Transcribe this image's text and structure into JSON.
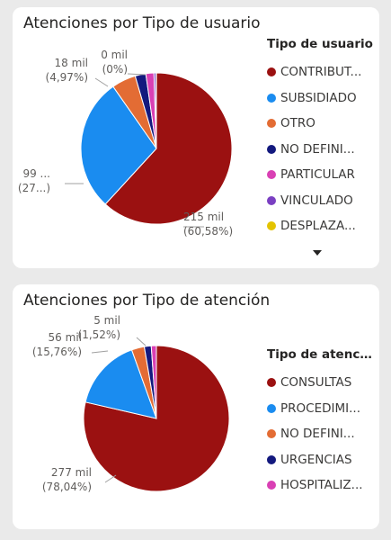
{
  "chart_data": [
    {
      "type": "pie",
      "title": "Atenciones por Tipo de usuario",
      "legend_title": "Tipo de usuario",
      "legend_position": "right",
      "slices": [
        {
          "name": "CONTRIBUT...",
          "value": 215,
          "color": "#9b1111",
          "label_value": "215 mil",
          "label_pct": "(60,58%)"
        },
        {
          "name": "SUBSIDIADO",
          "value": 99,
          "color": "#1a8cf0",
          "label_value": "99 ...",
          "label_pct": "(27...)"
        },
        {
          "name": "OTRO",
          "value": 18,
          "color": "#e36c34",
          "label_value": "18 mil",
          "label_pct": "(4,97%)"
        },
        {
          "name": "NO DEFINI...",
          "value": 8,
          "color": "#13197e",
          "label_value": "",
          "label_pct": ""
        },
        {
          "name": "PARTICULAR",
          "value": 6,
          "color": "#d940b4",
          "label_value": "",
          "label_pct": ""
        },
        {
          "name": "VINCULADO",
          "value": 1.5,
          "color": "#7a3fc2",
          "label_value": "",
          "label_pct": ""
        },
        {
          "name": "DESPLAZA...",
          "value": 0.3,
          "color": "#e3c300",
          "label_value": "0 mil",
          "label_pct": "(0%)"
        }
      ]
    },
    {
      "type": "pie",
      "title": "Atenciones por Tipo de atención",
      "legend_title": "Tipo de atenci...",
      "legend_position": "right",
      "slices": [
        {
          "name": "CONSULTAS",
          "value": 277,
          "color": "#9b1111",
          "label_value": "277 mil",
          "label_pct": "(78,04%)"
        },
        {
          "name": "PROCEDIMI...",
          "value": 56,
          "color": "#1a8cf0",
          "label_value": "56 mil",
          "label_pct": "(15,76%)"
        },
        {
          "name": "NO DEFINI...",
          "value": 10,
          "color": "#e36c34",
          "label_value": "",
          "label_pct": ""
        },
        {
          "name": "URGENCIAS",
          "value": 5.4,
          "color": "#13197e",
          "label_value": "5 mil",
          "label_pct": "(1,52%)"
        },
        {
          "name": "HOSPITALIZ...",
          "value": 4,
          "color": "#d940b4",
          "label_value": "",
          "label_pct": ""
        }
      ]
    }
  ]
}
